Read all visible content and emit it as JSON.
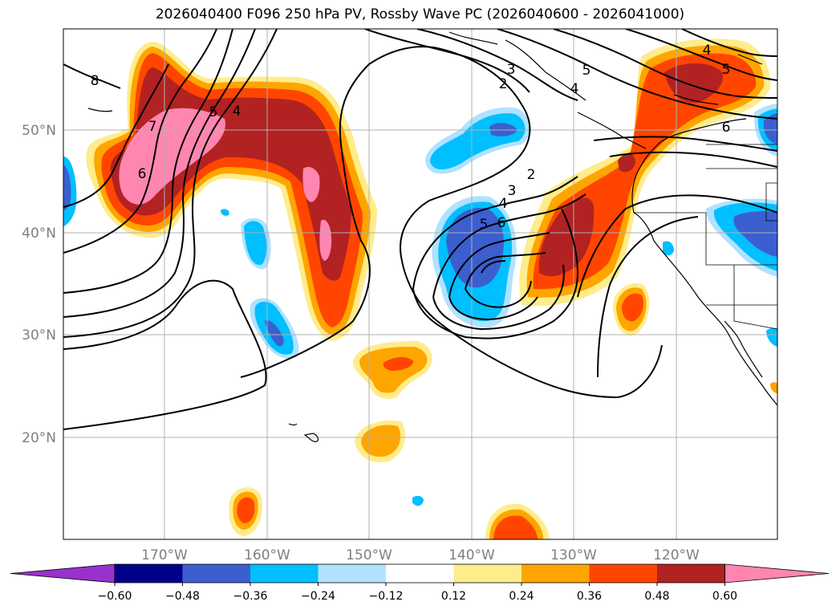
{
  "title": "2026040400 F096 250 hPa PV, Rossby Wave PC (2026040600 - 2026041000)",
  "lat_labels": [
    "50°N",
    "40°N",
    "30°N",
    "20°N"
  ],
  "lon_labels": [
    "170°W",
    "160°W",
    "150°W",
    "140°W",
    "130°W",
    "120°W"
  ],
  "colorbar": {
    "ticks": [
      "−0.60",
      "−0.48",
      "−0.36",
      "−0.24",
      "−0.12",
      "0.12",
      "0.24",
      "0.36",
      "0.48",
      "0.60"
    ],
    "colors": [
      "#9932cc",
      "#00008b",
      "#3b5fcf",
      "#00bfff",
      "#b0e2ff",
      "#ffffff",
      "#ffec8b",
      "#ffa500",
      "#ff4500",
      "#b22222",
      "#ff86b0"
    ]
  },
  "contour_labels": [
    {
      "id": "c8",
      "text": "8"
    },
    {
      "id": "c7",
      "text": "7"
    },
    {
      "id": "c6a",
      "text": "6"
    },
    {
      "id": "c5a",
      "text": "5"
    },
    {
      "id": "c4a",
      "text": "4"
    },
    {
      "id": "c3a",
      "text": "3"
    },
    {
      "id": "c2a",
      "text": "2"
    },
    {
      "id": "c5b",
      "text": "5"
    },
    {
      "id": "c4b",
      "text": "4"
    },
    {
      "id": "c4c",
      "text": "4"
    },
    {
      "id": "c5c",
      "text": "5"
    },
    {
      "id": "c6b",
      "text": "6"
    },
    {
      "id": "c2b",
      "text": "2"
    },
    {
      "id": "c3b",
      "text": "3"
    },
    {
      "id": "c4d",
      "text": "4"
    },
    {
      "id": "c5d",
      "text": "5"
    },
    {
      "id": "c6c",
      "text": "6"
    }
  ]
}
